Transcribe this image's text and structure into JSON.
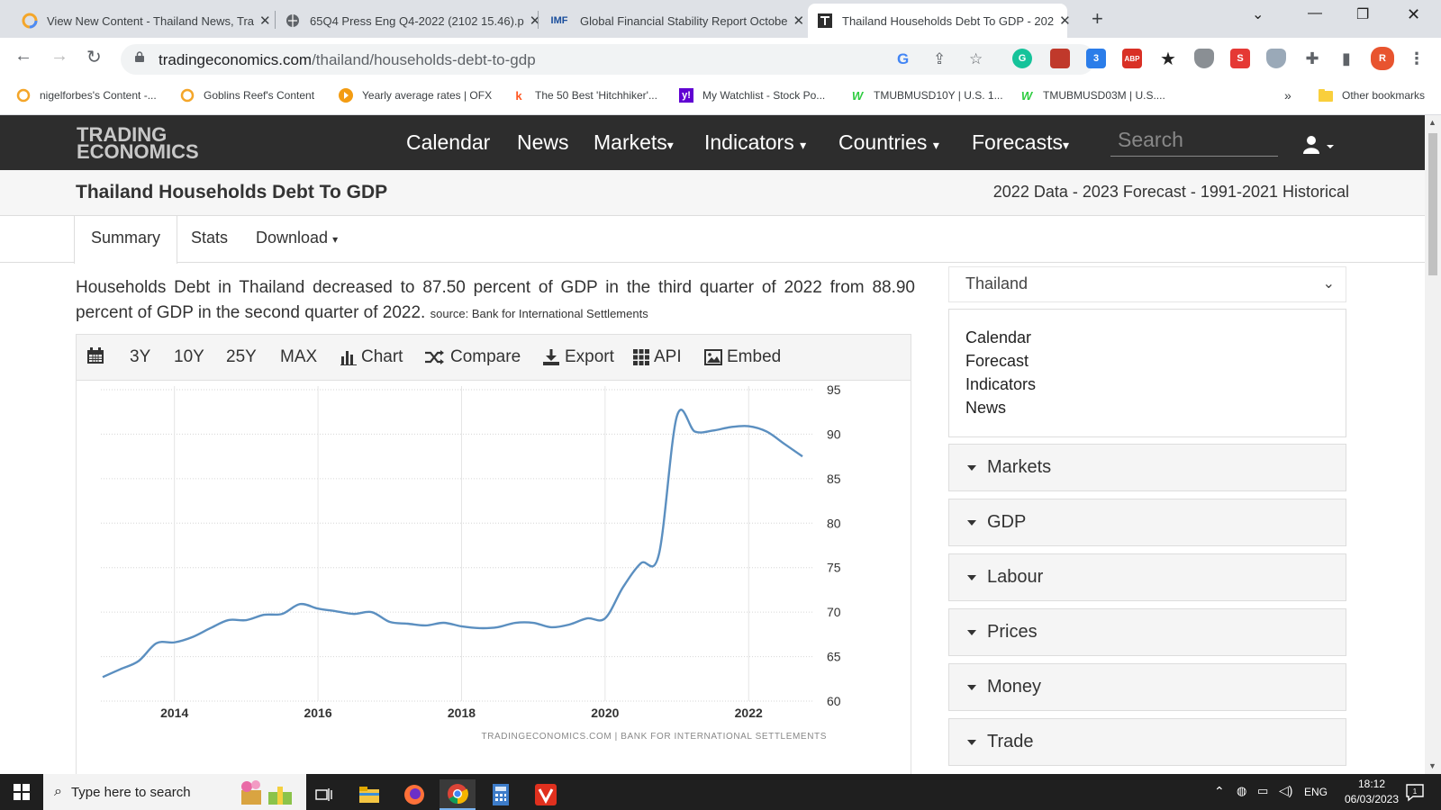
{
  "browser": {
    "tabs": [
      {
        "title": "View New Content - Thailand News, Tra",
        "active": false
      },
      {
        "title": "65Q4 Press Eng Q4-2022 (2102 15.46).p",
        "active": false
      },
      {
        "title": "Global Financial Stability Report Octobe",
        "active": false,
        "favicon_text": "IMF"
      },
      {
        "title": "Thailand Households Debt To GDP - 202",
        "active": true
      }
    ],
    "url_host": "tradingeconomics.com",
    "url_path": "/thailand/households-debt-to-gdp",
    "bookmarks": [
      {
        "label": "nigelforbes's Content -..."
      },
      {
        "label": "Goblins Reef's Content"
      },
      {
        "label": "Yearly average rates | OFX"
      },
      {
        "label": "The 50 Best 'Hitchhiker'..."
      },
      {
        "label": "My Watchlist - Stock Po..."
      },
      {
        "label": "TMUBMUSD10Y | U.S. 1..."
      },
      {
        "label": "TMUBMUSD03M | U.S...."
      }
    ],
    "bookmarks_overflow": "»",
    "other_bookmarks": "Other bookmarks",
    "extension_badges": {
      "gerry": "3",
      "abp": "1"
    },
    "profile_initial": "R",
    "abp_label": "ABP"
  },
  "site": {
    "logo_line1": "TRADING",
    "logo_line2": "ECONOMICS",
    "menu": [
      "Calendar",
      "News",
      "Markets",
      "Indicators",
      "Countries",
      "Forecasts"
    ],
    "search_placeholder": "Search",
    "page_title": "Thailand Households Debt To GDP",
    "page_subtitle": "2022 Data - 2023 Forecast - 1991-2021 Historical",
    "subtabs": [
      "Summary",
      "Stats",
      "Download"
    ],
    "description": "Households Debt in Thailand decreased to 87.50 percent of GDP in the third quarter of 2022 from 88.90 percent of GDP in the second quarter of 2022.",
    "source": "source: Bank for International Settlements",
    "chart_tools": [
      "3Y",
      "10Y",
      "25Y",
      "MAX",
      "Chart",
      "Compare",
      "Export",
      "API",
      "Embed"
    ],
    "chart_credit": "TRADINGECONOMICS.COM  |  BANK FOR INTERNATIONAL SETTLEMENTS",
    "country_select": "Thailand",
    "side_links": [
      "Calendar",
      "Forecast",
      "Indicators",
      "News"
    ],
    "accordions": [
      "Markets",
      "GDP",
      "Labour",
      "Prices",
      "Money",
      "Trade"
    ]
  },
  "chart_data": {
    "type": "line",
    "y_ticks": [
      95,
      90,
      85,
      80,
      75,
      70,
      65,
      60
    ],
    "x_ticks": [
      "2014",
      "2016",
      "2018",
      "2020",
      "2022"
    ],
    "ylim": [
      60,
      95
    ],
    "xlim": [
      2013.0,
      2022.75
    ],
    "color": "#5b8fc0",
    "series": [
      {
        "x": [
          2013.0,
          2013.25,
          2013.5,
          2013.75,
          2014.0,
          2014.25,
          2014.5,
          2014.75,
          2015.0,
          2015.25,
          2015.5,
          2015.75,
          2016.0,
          2016.25,
          2016.5,
          2016.75,
          2017.0,
          2017.25,
          2017.5,
          2017.75,
          2018.0,
          2018.25,
          2018.5,
          2018.75,
          2019.0,
          2019.25,
          2019.5,
          2019.75,
          2020.0,
          2020.25,
          2020.5,
          2020.75,
          2021.0,
          2021.25,
          2021.5,
          2021.75,
          2022.0,
          2022.25,
          2022.5,
          2022.75
        ],
        "y": [
          62.7,
          63.6,
          64.5,
          66.5,
          66.6,
          67.2,
          68.2,
          69.1,
          69.1,
          69.7,
          69.8,
          70.9,
          70.4,
          70.1,
          69.8,
          70.0,
          68.9,
          68.7,
          68.5,
          68.8,
          68.4,
          68.2,
          68.3,
          68.8,
          68.8,
          68.3,
          68.6,
          69.3,
          69.3,
          72.8,
          75.5,
          76.5,
          92.0,
          90.3,
          90.4,
          90.8,
          90.9,
          90.3,
          88.9,
          87.5
        ]
      }
    ]
  },
  "taskbar": {
    "search_placeholder": "Type here to search",
    "lang": "ENG",
    "time": "18:12",
    "date": "06/03/2023",
    "notifications": "1"
  }
}
